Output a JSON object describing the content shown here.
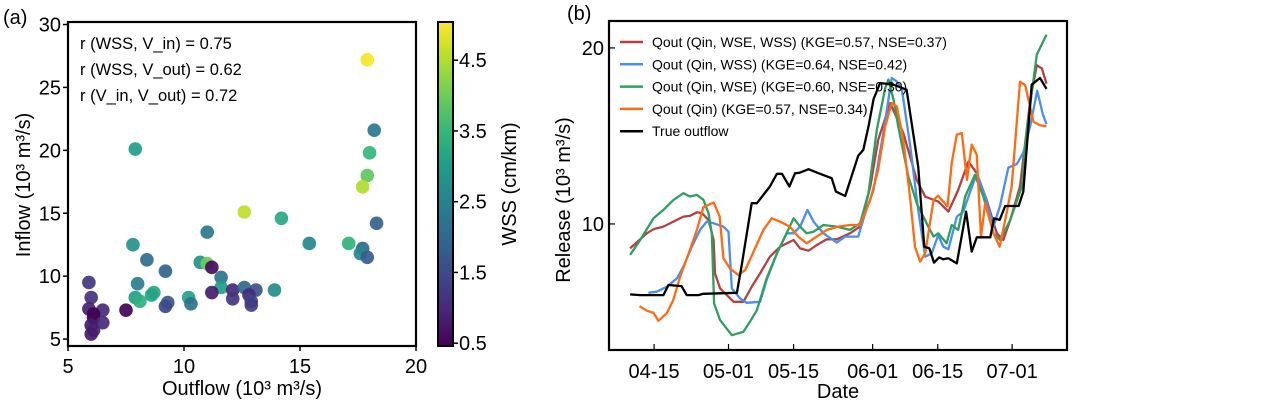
{
  "chart_data": [
    {
      "type": "scatter",
      "panel_label": "(a)",
      "xlabel": "Outflow (10³ m³/s)",
      "ylabel": "Inflow (10³ m³/s)",
      "xlim": [
        5,
        20
      ],
      "ylim": [
        4.45,
        30.2
      ],
      "xticks": [
        "5",
        "10",
        "15",
        "20"
      ],
      "yticks": [
        "5",
        "10",
        "15",
        "20",
        "25",
        "30"
      ],
      "annotations": [
        "r (WSS, V_in) = 0.75",
        "r (WSS, V_out) = 0.62",
        "r (V_in, V_out) = 0.72"
      ],
      "colorbar": {
        "label": "WSS (cm/km)",
        "colormap": "viridis",
        "range": [
          0.46,
          5.04
        ],
        "ticks": [
          "0.5",
          "1.5",
          "2.5",
          "3.5",
          "4.5"
        ]
      },
      "points": [
        {
          "x": 17.9,
          "y": 27.2,
          "c": 5.0
        },
        {
          "x": 18.2,
          "y": 21.6,
          "c": 2.3
        },
        {
          "x": 18.0,
          "y": 19.8,
          "c": 3.5
        },
        {
          "x": 17.9,
          "y": 18.0,
          "c": 3.9
        },
        {
          "x": 17.7,
          "y": 17.1,
          "c": 4.5
        },
        {
          "x": 7.9,
          "y": 20.1,
          "c": 3.0
        },
        {
          "x": 12.6,
          "y": 15.1,
          "c": 4.6
        },
        {
          "x": 14.2,
          "y": 14.6,
          "c": 3.2
        },
        {
          "x": 18.3,
          "y": 14.2,
          "c": 1.9
        },
        {
          "x": 11.0,
          "y": 13.5,
          "c": 2.3
        },
        {
          "x": 15.4,
          "y": 12.6,
          "c": 2.6
        },
        {
          "x": 17.1,
          "y": 12.6,
          "c": 3.4
        },
        {
          "x": 17.7,
          "y": 12.2,
          "c": 2.0
        },
        {
          "x": 17.6,
          "y": 11.8,
          "c": 2.6
        },
        {
          "x": 17.9,
          "y": 11.5,
          "c": 1.8
        },
        {
          "x": 7.8,
          "y": 12.5,
          "c": 2.8
        },
        {
          "x": 8.4,
          "y": 11.3,
          "c": 2.1
        },
        {
          "x": 10.7,
          "y": 11.1,
          "c": 2.8
        },
        {
          "x": 11.0,
          "y": 11.0,
          "c": 4.0
        },
        {
          "x": 11.2,
          "y": 10.7,
          "c": 0.6
        },
        {
          "x": 9.2,
          "y": 10.4,
          "c": 1.9
        },
        {
          "x": 11.6,
          "y": 9.9,
          "c": 2.2
        },
        {
          "x": 8.0,
          "y": 9.4,
          "c": 2.4
        },
        {
          "x": 5.9,
          "y": 9.5,
          "c": 1.2
        },
        {
          "x": 11.6,
          "y": 9.1,
          "c": 3.0
        },
        {
          "x": 12.1,
          "y": 8.9,
          "c": 1.0
        },
        {
          "x": 12.6,
          "y": 9.1,
          "c": 2.0
        },
        {
          "x": 13.1,
          "y": 8.9,
          "c": 1.6
        },
        {
          "x": 13.9,
          "y": 8.9,
          "c": 2.7
        },
        {
          "x": 8.7,
          "y": 8.7,
          "c": 3.2
        },
        {
          "x": 8.6,
          "y": 8.5,
          "c": 3.1
        },
        {
          "x": 11.2,
          "y": 8.7,
          "c": 0.8
        },
        {
          "x": 12.8,
          "y": 8.5,
          "c": 1.0
        },
        {
          "x": 7.9,
          "y": 8.3,
          "c": 3.0
        },
        {
          "x": 8.1,
          "y": 8.0,
          "c": 3.4
        },
        {
          "x": 6.0,
          "y": 8.3,
          "c": 1.1
        },
        {
          "x": 10.2,
          "y": 8.3,
          "c": 3.1
        },
        {
          "x": 12.1,
          "y": 8.2,
          "c": 1.2
        },
        {
          "x": 12.9,
          "y": 8.0,
          "c": 1.4
        },
        {
          "x": 12.9,
          "y": 7.7,
          "c": 1.3
        },
        {
          "x": 9.3,
          "y": 7.9,
          "c": 1.7
        },
        {
          "x": 9.2,
          "y": 7.6,
          "c": 1.5
        },
        {
          "x": 10.3,
          "y": 7.8,
          "c": 2.2
        },
        {
          "x": 6.5,
          "y": 7.3,
          "c": 1.0
        },
        {
          "x": 7.5,
          "y": 7.3,
          "c": 0.5
        },
        {
          "x": 5.9,
          "y": 7.4,
          "c": 0.9
        },
        {
          "x": 6.1,
          "y": 7.0,
          "c": 0.4
        },
        {
          "x": 6.1,
          "y": 6.7,
          "c": 0.5
        },
        {
          "x": 6.5,
          "y": 6.3,
          "c": 1.0
        },
        {
          "x": 6.0,
          "y": 6.1,
          "c": 0.8
        },
        {
          "x": 6.1,
          "y": 5.7,
          "c": 0.9
        },
        {
          "x": 6.0,
          "y": 5.4,
          "c": 0.8
        }
      ]
    },
    {
      "type": "line",
      "panel_label": "(b)",
      "xlabel": "Date",
      "ylabel": "Release (10³ m³/s)",
      "x_units": "days relative to 04-15",
      "xlim": [
        -9.7,
        88.8
      ],
      "ylim": [
        2.84,
        21.53
      ],
      "xticks": [
        {
          "label": "04-15",
          "day": 0
        },
        {
          "label": "05-01",
          "day": 16
        },
        {
          "label": "05-15",
          "day": 30
        },
        {
          "label": "06-01",
          "day": 47
        },
        {
          "label": "06-15",
          "day": 61
        },
        {
          "label": "07-01",
          "day": 77
        }
      ],
      "yticks": [
        {
          "label": "10",
          "value": 10
        },
        {
          "label": "20",
          "value": 20
        }
      ],
      "legend_position": "top-left",
      "series": [
        {
          "name": "Qout (Qin, WSE, WSS) (KGE=0.57, NSE=0.37)",
          "color": "#b5403f",
          "x": [
            -5.16,
            -1.58,
            -0.14,
            2.0,
            4.9,
            6.3,
            7.7,
            9.2,
            10.3,
            11.7,
            12.8,
            13.1,
            14.2,
            17.1,
            19.2,
            21.0,
            22.8,
            24.9,
            27.1,
            30.0,
            31.4,
            33.2,
            35.0,
            37.1,
            39.3,
            42.1,
            44.3,
            46.5,
            48.2,
            50.8,
            53.6,
            56.5,
            58.3,
            61.1,
            63.3,
            65.4,
            67.6,
            69.4,
            71.5,
            73.7,
            75.1,
            76.6,
            78.7,
            80.9,
            82.3,
            83.4,
            84.4
          ],
          "y": [
            8.61,
            9.47,
            9.7,
            9.85,
            10.23,
            10.42,
            10.46,
            10.66,
            10.61,
            10.23,
            9.09,
            7.19,
            6.34,
            5.58,
            5.58,
            6.43,
            7.19,
            8.14,
            8.71,
            9.09,
            8.61,
            8.48,
            8.8,
            9.13,
            9.13,
            9.47,
            9.85,
            12.13,
            14.78,
            16.87,
            15.16,
            12.5,
            11.55,
            11.27,
            10.7,
            11.93,
            13.55,
            12.88,
            11.37,
            9.47,
            9.09,
            10.23,
            12.13,
            17.06,
            19.02,
            18.83,
            17.97
          ]
        },
        {
          "name": "Qout (Qin, WSS) (KGE=0.64, NSE=0.42)",
          "color": "#4a8ef0",
          "x": [
            -1.22,
            0.57,
            2.7,
            4.9,
            6.3,
            8.1,
            9.9,
            11.3,
            12.8,
            14.9,
            16.0,
            16.7,
            18.5,
            19.9,
            22.8,
            24.2,
            26.4,
            28.5,
            30.0,
            31.4,
            33.0,
            34.3,
            36.4,
            39.3,
            41.1,
            43.9,
            45.4,
            47.2,
            49.3,
            51.1,
            52.2,
            53.3,
            55.1,
            56.8,
            58.3,
            59.7,
            61.1,
            62.2,
            63.3,
            65.1,
            66.5,
            67.6,
            69.4,
            71.2,
            73.0,
            74.4,
            76.2,
            78.0,
            79.4,
            80.9,
            82.4,
            83.6,
            84.4
          ],
          "y": [
            6.09,
            6.15,
            6.43,
            6.91,
            7.57,
            8.71,
            9.66,
            10.13,
            10.04,
            9.85,
            9.56,
            6.34,
            5.77,
            5.52,
            5.58,
            6.81,
            8.33,
            9.47,
            9.47,
            9.85,
            10.8,
            10.13,
            9.47,
            8.94,
            9.28,
            9.28,
            10.61,
            11.94,
            15.16,
            18.29,
            18.1,
            17.63,
            14.4,
            10.8,
            8.14,
            8.33,
            9.37,
            8.71,
            8.56,
            10.42,
            10.7,
            11.55,
            12.88,
            11.55,
            9.85,
            11.03,
            13.21,
            13.4,
            14.06,
            15.58,
            17.57,
            16.24,
            15.67
          ]
        },
        {
          "name": "Qout (Qin, WSE) (KGE=0.60, NSE=0.30)",
          "color": "#2ea05e",
          "x": [
            -5.16,
            -3.0,
            -0.14,
            2.0,
            4.2,
            6.3,
            7.7,
            9.2,
            10.6,
            11.7,
            12.4,
            12.9,
            14.2,
            16.7,
            19.2,
            20.6,
            22.1,
            24.2,
            26.4,
            28.5,
            30.0,
            31.4,
            32.8,
            34.3,
            36.4,
            39.3,
            42.1,
            44.3,
            46.1,
            47.9,
            49.7,
            50.4,
            51.5,
            52.5,
            54.7,
            56.5,
            58.6,
            60.1,
            61.1,
            62.9,
            64.0,
            65.4,
            66.9,
            69.0,
            70.8,
            73.0,
            74.4,
            76.6,
            79.1,
            80.1,
            82.3,
            84.4
          ],
          "y": [
            8.24,
            9.09,
            10.32,
            10.8,
            11.37,
            11.75,
            11.56,
            11.65,
            11.37,
            10.61,
            9.47,
            5.48,
            4.54,
            3.68,
            3.87,
            4.44,
            5.1,
            6.91,
            8.33,
            9.47,
            10.32,
            9.85,
            9.47,
            9.56,
            9.94,
            9.85,
            9.66,
            10.04,
            11.75,
            15.35,
            17.72,
            18.2,
            17.06,
            15.54,
            12.69,
            11.18,
            10.04,
            9.28,
            9.47,
            8.9,
            9.94,
            9.66,
            11.56,
            12.79,
            11.56,
            9.47,
            9.09,
            10.23,
            12.13,
            15.16,
            19.62,
            20.76
          ]
        },
        {
          "name": "Qout (Qin) (KGE=0.57, NSE=0.34)",
          "color": "#ff6a12",
          "x": [
            -3.15,
            -1.58,
            -0.14,
            0.93,
            2.7,
            4.1,
            5.6,
            7.7,
            9.2,
            10.6,
            12.8,
            14.1,
            14.9,
            16.3,
            18.1,
            19.6,
            21.4,
            23.5,
            25.3,
            27.1,
            29.2,
            31.0,
            32.8,
            35.0,
            37.1,
            39.6,
            42.1,
            44.3,
            46.5,
            48.2,
            49.7,
            51.1,
            52.2,
            53.6,
            55.1,
            56.1,
            57.2,
            58.3,
            60.1,
            61.1,
            63.1,
            64.0,
            65.1,
            66.2,
            67.3,
            68.3,
            69.4,
            70.3,
            71.2,
            73.0,
            74.3,
            75.8,
            76.9,
            78.7,
            79.8,
            81.6,
            83.0,
            84.4
          ],
          "y": [
            5.33,
            5.07,
            4.95,
            4.5,
            4.92,
            5.67,
            7.0,
            8.52,
            9.66,
            10.95,
            11.22,
            10.42,
            8.05,
            7.48,
            7.1,
            7.38,
            8.43,
            9.66,
            10.32,
            10.13,
            9.85,
            9.28,
            8.9,
            9.28,
            9.66,
            9.85,
            9.94,
            9.94,
            11.37,
            13.08,
            15.54,
            16.87,
            16.68,
            14.78,
            11.37,
            8.71,
            7.86,
            8.33,
            11.37,
            11.6,
            10.99,
            13.46,
            15.07,
            15.16,
            12.5,
            14.5,
            13.93,
            9.28,
            11.18,
            9.47,
            8.71,
            10.61,
            12.13,
            18.08,
            17.89,
            15.8,
            15.61,
            15.54
          ]
        },
        {
          "name": "True outflow",
          "color": "#000000",
          "x": [
            -5.16,
            -3.0,
            2.0,
            3.1,
            5.9,
            7.0,
            9.5,
            10.6,
            17.8,
            18.9,
            21.0,
            22.1,
            24.9,
            26.4,
            27.5,
            29.1,
            30.3,
            31.4,
            33.2,
            35.0,
            38.2,
            39.1,
            41.1,
            43.9,
            45.0,
            46.1,
            47.2,
            48.6,
            51.5,
            54.3,
            56.8,
            58.1,
            59.2,
            60.2,
            61.3,
            62.2,
            63.3,
            65.1,
            67.1,
            68.3,
            69.4,
            72.3,
            73.1,
            74.3,
            75.5,
            78.4,
            79.4,
            81.2,
            83.0,
            84.4
          ],
          "y": [
            6.0,
            5.96,
            5.96,
            6.53,
            6.47,
            5.96,
            5.96,
            6.03,
            6.09,
            7.76,
            11.18,
            11.18,
            12.13,
            12.85,
            12.85,
            12.13,
            12.88,
            12.92,
            13.11,
            12.92,
            12.6,
            11.84,
            11.59,
            13.87,
            14.21,
            15.54,
            17.1,
            18.01,
            17.91,
            17.63,
            13.26,
            8.71,
            8.61,
            7.8,
            8.1,
            7.99,
            8.05,
            7.76,
            10.7,
            8.43,
            9.24,
            9.24,
            10.32,
            10.23,
            11.02,
            11.02,
            11.84,
            17.91,
            18.29,
            17.67
          ]
        }
      ]
    }
  ]
}
